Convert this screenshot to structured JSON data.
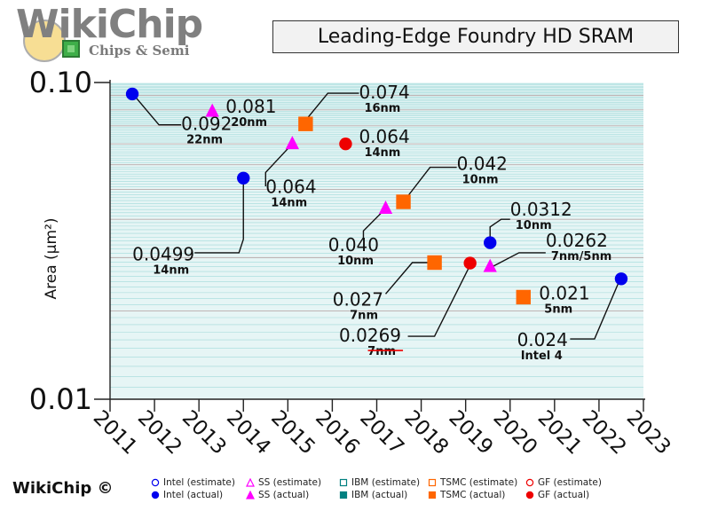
{
  "logo": {
    "name": "WikiChip",
    "tagline": "Chips & Semi"
  },
  "credit": "WikiChip ©",
  "colors": {
    "intel": "#0000ee",
    "ss": "#ff00ff",
    "ibm": "#008080",
    "tsmc": "#ff6600",
    "gf": "#ee0000",
    "grid": "#9fd9d9",
    "plot_bg": "#d8eeee"
  },
  "chart_data": {
    "type": "scatter",
    "title": "Leading-Edge Foundry HD SRAM",
    "xlabel": "",
    "ylabel": "Area (µm²)",
    "x_ticks": [
      2011,
      2012,
      2013,
      2014,
      2015,
      2016,
      2017,
      2018,
      2019,
      2020,
      2021,
      2022,
      2023
    ],
    "xlim": [
      2011,
      2023
    ],
    "ylim": [
      0.01,
      0.1
    ],
    "y_scale": "log",
    "y_tick_labels": [
      "0.10",
      "0.01"
    ],
    "grid": true,
    "legend_position": "bottom",
    "legend": [
      {
        "key": "intel_est",
        "label": "Intel (estimate)",
        "color": "#0000ee",
        "shape": "circle",
        "filled": false
      },
      {
        "key": "ss_est",
        "label": "SS (estimate)",
        "color": "#ff00ff",
        "shape": "triangle",
        "filled": false
      },
      {
        "key": "ibm_est",
        "label": "IBM (estimate)",
        "color": "#008080",
        "shape": "square",
        "filled": false
      },
      {
        "key": "tsmc_est",
        "label": "TSMC (estimate)",
        "color": "#ff6600",
        "shape": "square",
        "filled": false
      },
      {
        "key": "gf_est",
        "label": "GF (estimate)",
        "color": "#ee0000",
        "shape": "circle",
        "filled": false
      },
      {
        "key": "intel_act",
        "label": "Intel (actual)",
        "color": "#0000ee",
        "shape": "circle",
        "filled": true
      },
      {
        "key": "ss_act",
        "label": "SS (actual)",
        "color": "#ff00ff",
        "shape": "triangle",
        "filled": true
      },
      {
        "key": "ibm_act",
        "label": "IBM (actual)",
        "color": "#008080",
        "shape": "square",
        "filled": true
      },
      {
        "key": "tsmc_act",
        "label": "TSMC (actual)",
        "color": "#ff6600",
        "shape": "square",
        "filled": true
      },
      {
        "key": "gf_act",
        "label": "GF (actual)",
        "color": "#ee0000",
        "shape": "circle",
        "filled": true
      }
    ],
    "points": [
      {
        "series": "Intel",
        "x": 2011.5,
        "y": 0.092,
        "value_label": "0.092",
        "node": "22nm",
        "color": "#0000ee",
        "shape": "circle",
        "leader": [
          [
            2011.5,
            0.0925
          ],
          [
            2012.1,
            0.0735
          ],
          [
            2012.6,
            0.0735
          ]
        ],
        "label_at": [
          2012.6,
          0.0735
        ],
        "anchor": "start"
      },
      {
        "series": "SS",
        "x": 2013.3,
        "y": 0.081,
        "value_label": "0.081",
        "node": "20nm",
        "color": "#ff00ff",
        "shape": "triangle",
        "leader": null,
        "label_at": [
          2013.6,
          0.0835
        ],
        "anchor": "start"
      },
      {
        "series": "Intel",
        "x": 2014.0,
        "y": 0.0499,
        "value_label": "0.0499",
        "node": "14nm",
        "color": "#0000ee",
        "shape": "circle",
        "leader": [
          [
            2014.0,
            0.0499
          ],
          [
            2014.0,
            0.032
          ],
          [
            2013.9,
            0.029
          ],
          [
            2012.9,
            0.029
          ]
        ],
        "label_at": [
          2012.9,
          0.0285
        ],
        "anchor": "end"
      },
      {
        "series": "SS",
        "x": 2015.1,
        "y": 0.064,
        "value_label": "0.064",
        "node": "14nm",
        "color": "#ff00ff",
        "shape": "triangle",
        "leader": [
          [
            2015.1,
            0.064
          ],
          [
            2014.5,
            0.052
          ],
          [
            2014.5,
            0.047
          ]
        ],
        "label_at": [
          2014.5,
          0.0465
        ],
        "anchor": "start"
      },
      {
        "series": "TSMC",
        "x": 2015.4,
        "y": 0.074,
        "value_label": "0.074",
        "node": "16nm",
        "color": "#ff6600",
        "shape": "square",
        "leader": [
          [
            2015.4,
            0.076
          ],
          [
            2015.9,
            0.0925
          ],
          [
            2016.6,
            0.0925
          ]
        ],
        "label_at": [
          2016.6,
          0.0925
        ],
        "anchor": "start"
      },
      {
        "series": "GF",
        "x": 2016.3,
        "y": 0.064,
        "value_label": "0.064",
        "node": "14nm",
        "color": "#ee0000",
        "shape": "circle",
        "leader": null,
        "label_at": [
          2016.6,
          0.067
        ],
        "anchor": "start"
      },
      {
        "series": "SS",
        "x": 2017.2,
        "y": 0.04,
        "value_label": "0.040",
        "node": "10nm",
        "color": "#ff00ff",
        "shape": "triangle",
        "leader": [
          [
            2017.2,
            0.04
          ],
          [
            2016.7,
            0.034
          ],
          [
            2016.7,
            0.032
          ]
        ],
        "label_at": [
          2017.05,
          0.0305
        ],
        "anchor": "end"
      },
      {
        "series": "TSMC",
        "x": 2017.6,
        "y": 0.042,
        "value_label": "0.042",
        "node": "10nm",
        "color": "#ff6600",
        "shape": "square",
        "leader": [
          [
            2017.6,
            0.042
          ],
          [
            2018.2,
            0.054
          ],
          [
            2018.8,
            0.054
          ]
        ],
        "label_at": [
          2018.8,
          0.055
        ],
        "anchor": "start"
      },
      {
        "series": "TSMC",
        "x": 2018.3,
        "y": 0.027,
        "value_label": "0.027",
        "node": "7nm",
        "color": "#ff6600",
        "shape": "square",
        "leader": [
          [
            2018.2,
            0.027
          ],
          [
            2017.8,
            0.027
          ],
          [
            2017.2,
            0.0215
          ]
        ],
        "label_at": [
          2017.15,
          0.0205
        ],
        "anchor": "end"
      },
      {
        "series": "GF",
        "x": 2019.1,
        "y": 0.0269,
        "value_label": "0.0269",
        "node": "7nm",
        "color": "#ee0000",
        "shape": "circle",
        "leader": [
          [
            2019.1,
            0.0265
          ],
          [
            2018.3,
            0.0158
          ],
          [
            2017.7,
            0.0158
          ]
        ],
        "label_at": [
          2017.55,
          0.0158
        ],
        "anchor": "end",
        "strike_node": true
      },
      {
        "series": "Intel",
        "x": 2019.55,
        "y": 0.0312,
        "value_label": "0.0312",
        "node": "10nm",
        "color": "#0000ee",
        "shape": "circle",
        "leader": [
          [
            2019.55,
            0.0312
          ],
          [
            2019.55,
            0.035
          ],
          [
            2019.8,
            0.037
          ],
          [
            2020.0,
            0.037
          ]
        ],
        "label_at": [
          2020.0,
          0.0395
        ],
        "anchor": "start"
      },
      {
        "series": "SS",
        "x": 2019.55,
        "y": 0.0262,
        "value_label": "0.0262",
        "node": "7nm/5nm",
        "color": "#ff00ff",
        "shape": "triangle",
        "leader": [
          [
            2019.6,
            0.0262
          ],
          [
            2020.2,
            0.029
          ],
          [
            2020.8,
            0.029
          ]
        ],
        "label_at": [
          2020.8,
          0.0315
        ],
        "anchor": "start"
      },
      {
        "series": "TSMC",
        "x": 2020.3,
        "y": 0.021,
        "value_label": "0.021",
        "node": "5nm",
        "color": "#ff6600",
        "shape": "square",
        "leader": null,
        "label_at": [
          2020.65,
          0.0215
        ],
        "anchor": "start"
      },
      {
        "series": "Intel",
        "x": 2022.5,
        "y": 0.024,
        "value_label": "0.024",
        "node": "Intel 4",
        "color": "#0000ee",
        "shape": "circle",
        "leader": [
          [
            2022.45,
            0.0235
          ],
          [
            2021.9,
            0.0155
          ],
          [
            2021.35,
            0.0155
          ]
        ],
        "label_at": [
          2021.3,
          0.0153
        ],
        "anchor": "end"
      }
    ]
  }
}
